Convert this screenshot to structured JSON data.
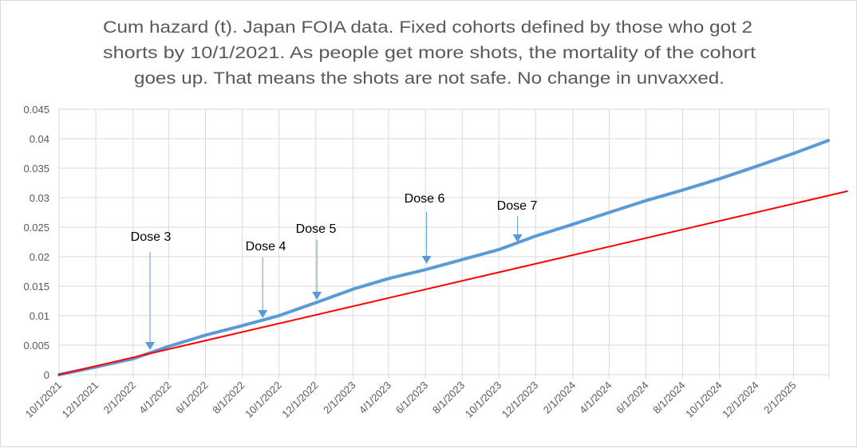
{
  "chart_data": {
    "type": "line",
    "title_lines": [
      "Cum hazard (t). Japan FOIA data. Fixed cohorts defined by those who got 2",
      "shorts by 10/1/2021. As people get more shots, the mortality of the cohort",
      "goes up. That means the shots are not safe. No change in unvaxxed."
    ],
    "xlabel": "",
    "ylabel": "",
    "xlim": [
      "2021-10-01",
      "2025-04-01"
    ],
    "ylim": [
      0,
      0.045
    ],
    "grid": true,
    "legend": "none",
    "y_ticks": [
      "0",
      "0.005",
      "0.01",
      "0.015",
      "0.02",
      "0.025",
      "0.03",
      "0.035",
      "0.04",
      "0.045"
    ],
    "x_ticks": [
      "10/1/2021",
      "12/1/2021",
      "2/1/2022",
      "4/1/2022",
      "6/1/2022",
      "8/1/2022",
      "10/1/2022",
      "12/1/2022",
      "2/1/2023",
      "4/1/2023",
      "6/1/2023",
      "8/1/2023",
      "10/1/2023",
      "12/1/2023",
      "2/1/2024",
      "4/1/2024",
      "6/1/2024",
      "8/1/2024",
      "10/1/2024",
      "12/1/2024",
      "2/1/2025"
    ],
    "series": [
      {
        "color": "#5B9BD5",
        "x": [
          "2021-10-01",
          "2021-12-01",
          "2022-02-01",
          "2022-04-01",
          "2022-06-01",
          "2022-08-01",
          "2022-10-01",
          "2022-12-01",
          "2023-02-01",
          "2023-04-01",
          "2023-06-01",
          "2023-08-01",
          "2023-10-01",
          "2023-12-01",
          "2024-02-01",
          "2024-04-01",
          "2024-06-01",
          "2024-08-01",
          "2024-10-01",
          "2024-12-01",
          "2025-02-01",
          "2025-03-31"
        ],
        "y": [
          0,
          0.0013,
          0.0027,
          0.0048,
          0.0067,
          0.0083,
          0.01,
          0.0122,
          0.0145,
          0.0163,
          0.0178,
          0.0195,
          0.0212,
          0.0235,
          0.0255,
          0.0275,
          0.0295,
          0.0313,
          0.0332,
          0.0353,
          0.0375,
          0.0397
        ]
      },
      {
        "color": "#FF0000",
        "x": [
          "2021-10-01",
          "2025-05-01"
        ],
        "y": [
          0,
          0.0311
        ]
      }
    ],
    "annotations": [
      {
        "label": "Dose 3",
        "x": "2022-03-01"
      },
      {
        "label": "Dose 4",
        "x": "2022-09-04"
      },
      {
        "label": "Dose 5",
        "x": "2022-12-03"
      },
      {
        "label": "Dose 6",
        "x": "2023-06-03"
      },
      {
        "label": "Dose 7",
        "x": "2023-11-01"
      }
    ],
    "annotation_color": "#5B9BD5",
    "grid_color": "#D9D9D9"
  }
}
